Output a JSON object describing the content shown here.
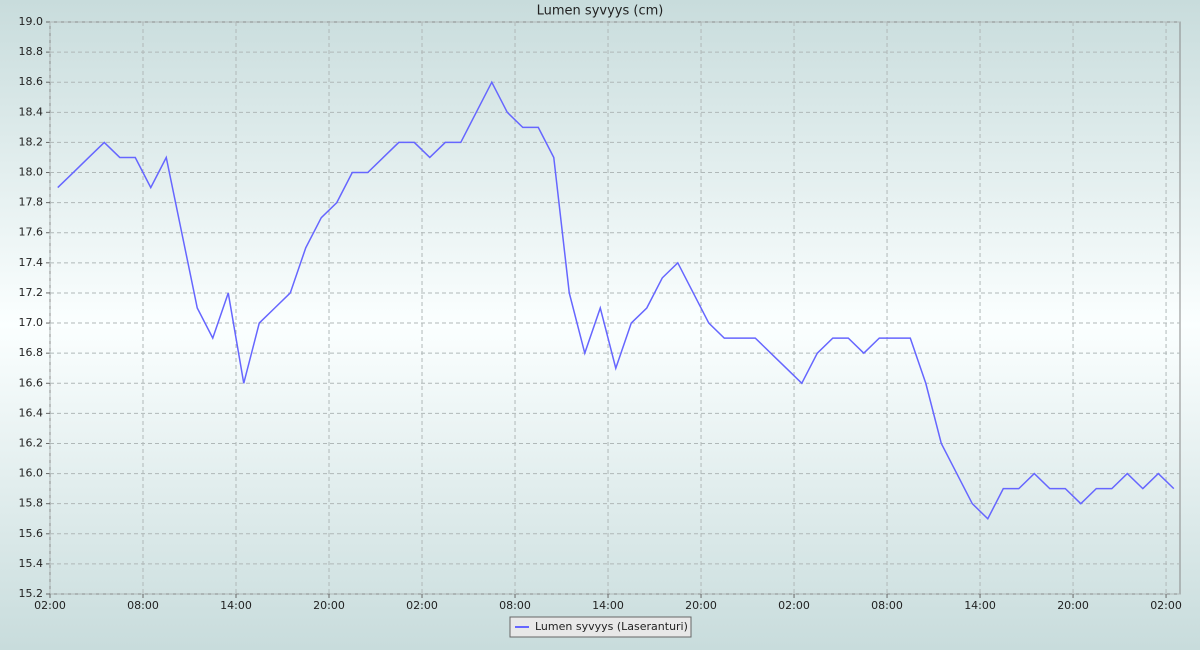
{
  "chart_data": {
    "type": "line",
    "title": "Lumen syvyys (cm)",
    "x": [
      0.5,
      1.5,
      2.5,
      3.5,
      4.5,
      5.5,
      6.5,
      7.5,
      8.5,
      9.5,
      10.5,
      11.5,
      12.5,
      13.5,
      14.5,
      15.5,
      16.5,
      17.5,
      18.5,
      19.5,
      20.5,
      21.5,
      22.5,
      23.5,
      24.5,
      25.5,
      26.5,
      27.5,
      28.5,
      29.5,
      30.5,
      31.5,
      32.5,
      33.5,
      34.5,
      35.5,
      36.5,
      37.5,
      38.5,
      39.5,
      40.5,
      41.5,
      42.5,
      43.5,
      44.5,
      45.5,
      46.5,
      47.5,
      48.5,
      49.5,
      50.5,
      51.5,
      52.5,
      53.5,
      54.5,
      55.5,
      56.5,
      57.5,
      58.5,
      59.5,
      60.5,
      61.5,
      62.5,
      63.5,
      64.5,
      65.5,
      66.5,
      67.5,
      68.5,
      69.5,
      70.5,
      71.5,
      72.5
    ],
    "series": [
      {
        "name": "Lumen syvyys (Laseranturi)",
        "color": "#6666ff",
        "values": [
          17.9,
          18.0,
          18.1,
          18.2,
          18.1,
          18.1,
          17.9,
          18.1,
          17.6,
          17.1,
          16.9,
          17.2,
          16.6,
          17.0,
          17.1,
          17.2,
          17.5,
          17.7,
          17.8,
          18.0,
          18.0,
          18.1,
          18.2,
          18.2,
          18.1,
          18.2,
          18.2,
          18.4,
          18.6,
          18.4,
          18.3,
          18.3,
          18.1,
          17.2,
          16.8,
          17.1,
          16.7,
          17.0,
          17.1,
          17.3,
          17.4,
          17.2,
          17.0,
          16.9,
          16.9,
          16.9,
          16.8,
          16.7,
          16.6,
          16.8,
          16.9,
          16.9,
          16.8,
          16.9,
          16.9,
          16.9,
          16.6,
          16.2,
          16.0,
          15.8,
          15.7,
          15.9,
          15.9,
          16.0,
          15.9,
          15.9,
          15.8,
          15.9,
          15.9,
          16.0,
          15.9,
          16.0,
          15.9
        ]
      }
    ],
    "xlim": [
      0,
      72.9
    ],
    "xticks": [
      {
        "value": 0,
        "label": "02:00"
      },
      {
        "value": 6,
        "label": "08:00"
      },
      {
        "value": 12,
        "label": "14:00"
      },
      {
        "value": 18,
        "label": "20:00"
      },
      {
        "value": 24,
        "label": "02:00"
      },
      {
        "value": 30,
        "label": "08:00"
      },
      {
        "value": 36,
        "label": "14:00"
      },
      {
        "value": 42,
        "label": "20:00"
      },
      {
        "value": 48,
        "label": "02:00"
      },
      {
        "value": 54,
        "label": "08:00"
      },
      {
        "value": 60,
        "label": "14:00"
      },
      {
        "value": 66,
        "label": "20:00"
      },
      {
        "value": 72,
        "label": "02:00"
      }
    ],
    "ylim": [
      15.2,
      19.0
    ],
    "yticks": [
      15.2,
      15.4,
      15.6,
      15.8,
      {
        "value": 16,
        "label": "16.0"
      },
      16.2,
      16.4,
      16.6,
      16.8,
      {
        "value": 17,
        "label": "17.0"
      },
      17.2,
      17.4,
      17.6,
      17.8,
      {
        "value": 18,
        "label": "18.0"
      },
      18.2,
      18.4,
      18.6,
      18.8,
      {
        "value": 19,
        "label": "19.0"
      }
    ],
    "grid": true
  }
}
